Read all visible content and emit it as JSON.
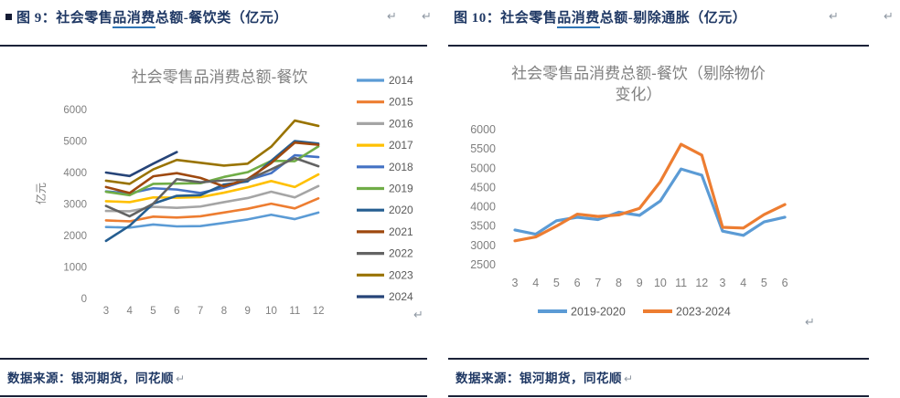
{
  "page": {
    "pilcrow": "↵"
  },
  "left_panel": {
    "fig_label": "图 9：",
    "title_pre": "社会零售",
    "title_underlined": "品消费",
    "title_post": "总额-餐饮类（亿元）",
    "source": "数据来源：银河期货，同花顺"
  },
  "right_panel": {
    "fig_label": "图 10：",
    "title_pre": "社会零售",
    "title_underlined": "品消费",
    "title_post": "总额-剔除通胀（亿元）",
    "source": "数据来源：银河期货，同花顺"
  },
  "colors": {
    "caption_navy": "#1F3864",
    "underline_blue": "#2E74B5",
    "chart_title_gray": "#808080",
    "tick_gray": "#7F7F7F",
    "legend_gray": "#595959",
    "divider": "#1b2238"
  },
  "chart_data": [
    {
      "type": "line",
      "title": "社会零售品消费总额-餐饮",
      "ylabel": "亿元",
      "categories": [
        "3",
        "4",
        "5",
        "6",
        "7",
        "8",
        "9",
        "10",
        "11",
        "12"
      ],
      "ylim": [
        0,
        6000
      ],
      "ytick_step": 1000,
      "grid": false,
      "legend_position": "right",
      "series": [
        {
          "name": "2014",
          "color": "#5B9BD5",
          "values": [
            2270,
            2250,
            2350,
            2290,
            2300,
            2400,
            2510,
            2660,
            2520,
            2730
          ]
        },
        {
          "name": "2015",
          "color": "#ED7D31",
          "values": [
            2480,
            2450,
            2600,
            2570,
            2610,
            2730,
            2850,
            3010,
            2860,
            3180
          ]
        },
        {
          "name": "2016",
          "color": "#A5A5A5",
          "values": [
            2780,
            2770,
            2910,
            2880,
            2920,
            3060,
            3190,
            3390,
            3210,
            3570
          ]
        },
        {
          "name": "2017",
          "color": "#FFC000",
          "values": [
            3090,
            3060,
            3210,
            3200,
            3220,
            3360,
            3530,
            3730,
            3540,
            3940
          ]
        },
        {
          "name": "2018",
          "color": "#4472C4",
          "values": [
            3400,
            3340,
            3500,
            3460,
            3350,
            3520,
            3760,
            3980,
            4550,
            4490
          ]
        },
        {
          "name": "2019",
          "color": "#70AD47",
          "values": [
            3390,
            3280,
            3640,
            3650,
            3660,
            3860,
            4010,
            4370,
            4360,
            4830
          ]
        },
        {
          "name": "2020",
          "color": "#255E91",
          "values": [
            1830,
            2310,
            3010,
            3260,
            3280,
            3620,
            3720,
            4370,
            5000,
            4920
          ]
        },
        {
          "name": "2021",
          "color": "#9E480E",
          "values": [
            3540,
            3350,
            3880,
            3980,
            3830,
            3560,
            3790,
            4300,
            4950,
            4880
          ]
        },
        {
          "name": "2022",
          "color": "#636363",
          "values": [
            2940,
            2610,
            3010,
            3790,
            3690,
            3750,
            3770,
            4100,
            4460,
            4200
          ]
        },
        {
          "name": "2023",
          "color": "#997300",
          "values": [
            3740,
            3640,
            4100,
            4400,
            4310,
            4220,
            4280,
            4820,
            5650,
            5480
          ]
        },
        {
          "name": "2024",
          "color": "#264478",
          "values": [
            4000,
            3890,
            4280,
            4650
          ]
        }
      ]
    },
    {
      "type": "line",
      "title_lines": [
        "社会零售品消费总额-餐饮（剔除物价",
        "变化）"
      ],
      "categories": [
        "3",
        "4",
        "5",
        "6",
        "7",
        "8",
        "9",
        "10",
        "11",
        "12",
        "3",
        "4",
        "5",
        "6"
      ],
      "ylim": [
        2500,
        6000
      ],
      "ytick_step": 500,
      "grid": false,
      "legend_position": "bottom",
      "series": [
        {
          "name": "2019-2020",
          "color": "#5B9BD5",
          "values": [
            3400,
            3290,
            3640,
            3730,
            3670,
            3860,
            3780,
            4150,
            4980,
            4820,
            3370,
            3260,
            3610,
            3730
          ]
        },
        {
          "name": "2023-2024",
          "color": "#ED7D31",
          "values": [
            3120,
            3220,
            3500,
            3810,
            3750,
            3790,
            3960,
            4650,
            5620,
            5340,
            3470,
            3450,
            3800,
            4060
          ]
        }
      ]
    }
  ]
}
